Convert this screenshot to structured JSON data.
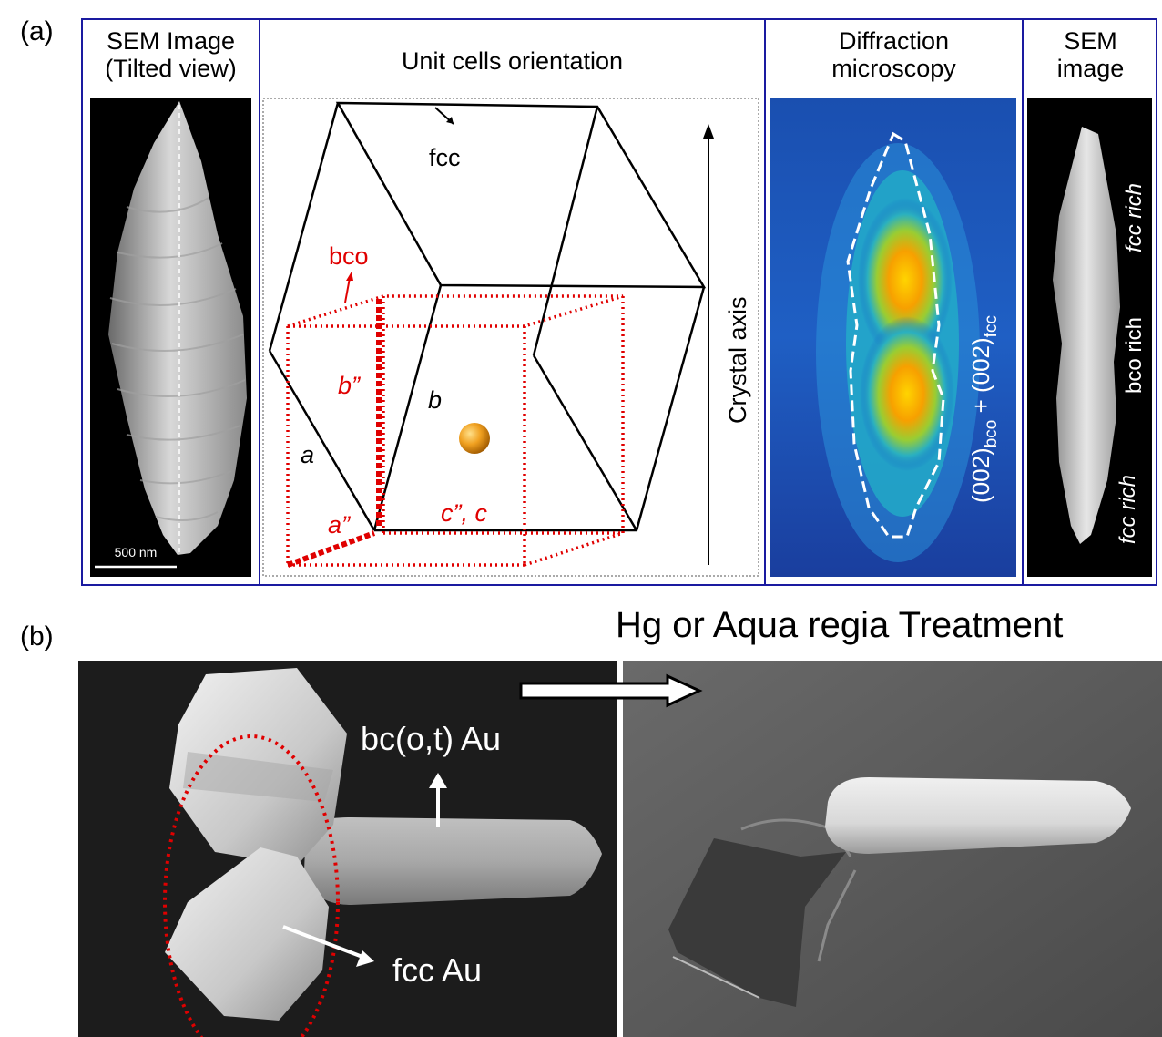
{
  "panel_a": {
    "label": "(a)",
    "sem_tilted": {
      "title_line1": "SEM Image",
      "title_line2": "(Tilted view)",
      "scale_bar": "500 nm"
    },
    "unit_cells": {
      "title": "Unit cells orientation",
      "fcc": "fcc",
      "bco": "bco",
      "b_dbl": "b”",
      "b": "b",
      "a": "a",
      "a_dbl": "a”",
      "c_label": "c”, c",
      "crystal_axis": "Crystal  axis"
    },
    "diffraction": {
      "title_line1": "Diffraction",
      "title_line2": "microscopy",
      "formula": {
        "part1": "(002)",
        "sub1": "bco",
        "part2": " + (002)",
        "sub2": "fcc"
      }
    },
    "sem_image": {
      "title_line1": "SEM",
      "title_line2": "image",
      "fcc_rich_top": "fcc rich",
      "bco_rich": "bco rich",
      "fcc_rich_bottom": "fcc rich"
    }
  },
  "panel_b": {
    "label": "(b)",
    "treatment_title": "Hg or Aqua regia Treatment",
    "bc_label": "bc(o,t) Au",
    "fcc_label": "fcc Au"
  },
  "colors": {
    "frame": "#1a1aa0",
    "red": "#e00000"
  }
}
